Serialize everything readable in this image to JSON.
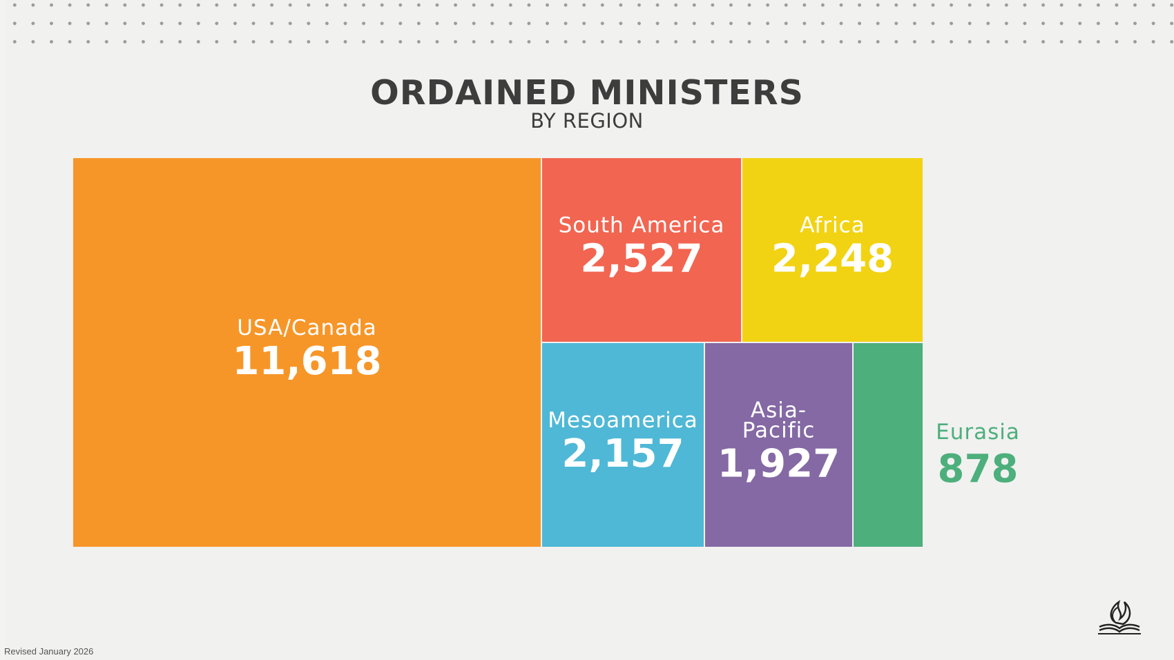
{
  "title": "ORDAINED MINISTERS",
  "subtitle": "BY REGION",
  "footer": "Revised January 2026",
  "logo": "church-flame-logo-icon",
  "chart_data": {
    "type": "treemap",
    "title": "ORDAINED MINISTERS",
    "subtitle": "BY REGION",
    "items": [
      {
        "name": "USA/Canada",
        "label_lines": [
          "USA/Canada"
        ],
        "value": 11618,
        "value_label": "11,618",
        "color": "#f79628",
        "label_outside": false
      },
      {
        "name": "South America",
        "label_lines": [
          "South America"
        ],
        "value": 2527,
        "value_label": "2,527",
        "color": "#f26551",
        "label_outside": false
      },
      {
        "name": "Africa",
        "label_lines": [
          "Africa"
        ],
        "value": 2248,
        "value_label": "2,248",
        "color": "#f2d313",
        "label_outside": false
      },
      {
        "name": "Mesoamerica",
        "label_lines": [
          "Mesoamerica"
        ],
        "value": 2157,
        "value_label": "2,157",
        "color": "#4fb8d6",
        "label_outside": false
      },
      {
        "name": "Asia-Pacific",
        "label_lines": [
          "Asia-",
          "Pacific"
        ],
        "value": 1927,
        "value_label": "1,927",
        "color": "#8469a4",
        "label_outside": false
      },
      {
        "name": "Eurasia",
        "label_lines": [
          "Eurasia"
        ],
        "value": 878,
        "value_label": "878",
        "color": "#4daf7c",
        "label_outside": true
      }
    ]
  }
}
